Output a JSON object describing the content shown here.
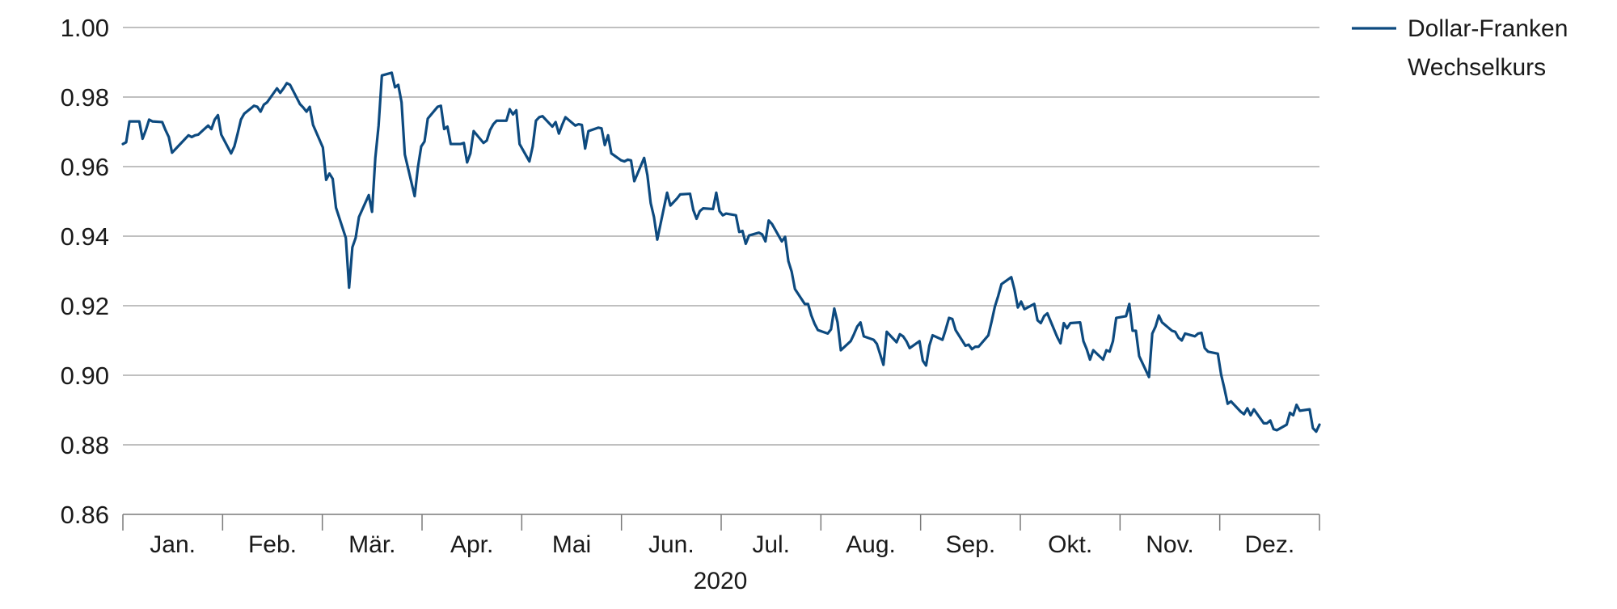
{
  "chart_data": {
    "type": "line",
    "title": "",
    "xlabel": "2020",
    "ylabel": "",
    "ylim": [
      0.86,
      1.0
    ],
    "yticks": [
      "1.00",
      "0.98",
      "0.96",
      "0.94",
      "0.92",
      "0.90",
      "0.88",
      "0.86"
    ],
    "months": [
      "Jan.",
      "Feb.",
      "Mär.",
      "Apr.",
      "Mai",
      "Jun.",
      "Jul.",
      "Aug.",
      "Sep.",
      "Okt.",
      "Nov.",
      "Dez."
    ],
    "grid": true,
    "legend_position": "top-right",
    "line_color": "#0d4a7f",
    "series": [
      {
        "name": "Dollar-Franken Wechselkurs",
        "points": [
          [
            "2020-01-01",
            0.9665
          ],
          [
            "2020-01-02",
            0.967
          ],
          [
            "2020-01-03",
            0.973
          ],
          [
            "2020-01-06",
            0.973
          ],
          [
            "2020-01-07",
            0.968
          ],
          [
            "2020-01-08",
            0.9705
          ],
          [
            "2020-01-09",
            0.9735
          ],
          [
            "2020-01-10",
            0.973
          ],
          [
            "2020-01-13",
            0.9728
          ],
          [
            "2020-01-14",
            0.9705
          ],
          [
            "2020-01-15",
            0.9685
          ],
          [
            "2020-01-16",
            0.964
          ],
          [
            "2020-01-17",
            0.965
          ],
          [
            "2020-01-20",
            0.968
          ],
          [
            "2020-01-21",
            0.969
          ],
          [
            "2020-01-22",
            0.9685
          ],
          [
            "2020-01-23",
            0.969
          ],
          [
            "2020-01-24",
            0.9692
          ],
          [
            "2020-01-27",
            0.9718
          ],
          [
            "2020-01-28",
            0.9708
          ],
          [
            "2020-01-29",
            0.9735
          ],
          [
            "2020-01-30",
            0.9748
          ],
          [
            "2020-01-31",
            0.9692
          ],
          [
            "2020-02-03",
            0.9638
          ],
          [
            "2020-02-04",
            0.9658
          ],
          [
            "2020-02-05",
            0.9695
          ],
          [
            "2020-02-06",
            0.9735
          ],
          [
            "2020-02-07",
            0.9752
          ],
          [
            "2020-02-10",
            0.9775
          ],
          [
            "2020-02-11",
            0.9772
          ],
          [
            "2020-02-12",
            0.9758
          ],
          [
            "2020-02-13",
            0.9778
          ],
          [
            "2020-02-14",
            0.9785
          ],
          [
            "2020-02-17",
            0.9825
          ],
          [
            "2020-02-18",
            0.9812
          ],
          [
            "2020-02-19",
            0.9825
          ],
          [
            "2020-02-20",
            0.984
          ],
          [
            "2020-02-21",
            0.9835
          ],
          [
            "2020-02-24",
            0.978
          ],
          [
            "2020-02-25",
            0.977
          ],
          [
            "2020-02-26",
            0.9758
          ],
          [
            "2020-02-27",
            0.9772
          ],
          [
            "2020-02-28",
            0.972
          ],
          [
            "2020-03-02",
            0.9655
          ],
          [
            "2020-03-03",
            0.9562
          ],
          [
            "2020-03-04",
            0.958
          ],
          [
            "2020-03-05",
            0.9565
          ],
          [
            "2020-03-06",
            0.9482
          ],
          [
            "2020-03-09",
            0.9395
          ],
          [
            "2020-03-10",
            0.9252
          ],
          [
            "2020-03-11",
            0.9368
          ],
          [
            "2020-03-12",
            0.9395
          ],
          [
            "2020-03-13",
            0.9455
          ],
          [
            "2020-03-16",
            0.9518
          ],
          [
            "2020-03-17",
            0.947
          ],
          [
            "2020-03-18",
            0.9625
          ],
          [
            "2020-03-19",
            0.9718
          ],
          [
            "2020-03-20",
            0.9862
          ],
          [
            "2020-03-23",
            0.987
          ],
          [
            "2020-03-24",
            0.9828
          ],
          [
            "2020-03-25",
            0.9835
          ],
          [
            "2020-03-26",
            0.9785
          ],
          [
            "2020-03-27",
            0.9635
          ],
          [
            "2020-03-30",
            0.9515
          ],
          [
            "2020-03-31",
            0.9598
          ],
          [
            "2020-04-01",
            0.9658
          ],
          [
            "2020-04-02",
            0.9672
          ],
          [
            "2020-04-03",
            0.9738
          ],
          [
            "2020-04-06",
            0.9772
          ],
          [
            "2020-04-07",
            0.9775
          ],
          [
            "2020-04-08",
            0.9708
          ],
          [
            "2020-04-09",
            0.9715
          ],
          [
            "2020-04-10",
            0.9665
          ],
          [
            "2020-04-13",
            0.9665
          ],
          [
            "2020-04-14",
            0.9668
          ],
          [
            "2020-04-15",
            0.9612
          ],
          [
            "2020-04-16",
            0.9638
          ],
          [
            "2020-04-17",
            0.9702
          ],
          [
            "2020-04-20",
            0.9668
          ],
          [
            "2020-04-21",
            0.9675
          ],
          [
            "2020-04-22",
            0.9705
          ],
          [
            "2020-04-23",
            0.9722
          ],
          [
            "2020-04-24",
            0.9732
          ],
          [
            "2020-04-27",
            0.9732
          ],
          [
            "2020-04-28",
            0.9765
          ],
          [
            "2020-04-29",
            0.975
          ],
          [
            "2020-04-30",
            0.9762
          ],
          [
            "2020-05-01",
            0.9665
          ],
          [
            "2020-05-04",
            0.9615
          ],
          [
            "2020-05-05",
            0.9658
          ],
          [
            "2020-05-06",
            0.9732
          ],
          [
            "2020-05-07",
            0.9742
          ],
          [
            "2020-05-08",
            0.9745
          ],
          [
            "2020-05-11",
            0.9715
          ],
          [
            "2020-05-12",
            0.9728
          ],
          [
            "2020-05-13",
            0.9695
          ],
          [
            "2020-05-14",
            0.972
          ],
          [
            "2020-05-15",
            0.9742
          ],
          [
            "2020-05-18",
            0.9718
          ],
          [
            "2020-05-19",
            0.9722
          ],
          [
            "2020-05-20",
            0.972
          ],
          [
            "2020-05-21",
            0.9652
          ],
          [
            "2020-05-22",
            0.9702
          ],
          [
            "2020-05-25",
            0.9712
          ],
          [
            "2020-05-26",
            0.971
          ],
          [
            "2020-05-27",
            0.9662
          ],
          [
            "2020-05-28",
            0.969
          ],
          [
            "2020-05-29",
            0.9638
          ],
          [
            "2020-06-01",
            0.9618
          ],
          [
            "2020-06-02",
            0.9615
          ],
          [
            "2020-06-03",
            0.962
          ],
          [
            "2020-06-04",
            0.9618
          ],
          [
            "2020-06-05",
            0.9558
          ],
          [
            "2020-06-08",
            0.9625
          ],
          [
            "2020-06-09",
            0.9575
          ],
          [
            "2020-06-10",
            0.9495
          ],
          [
            "2020-06-11",
            0.9455
          ],
          [
            "2020-06-12",
            0.939
          ],
          [
            "2020-06-15",
            0.9525
          ],
          [
            "2020-06-16",
            0.9488
          ],
          [
            "2020-06-17",
            0.9498
          ],
          [
            "2020-06-18",
            0.9508
          ],
          [
            "2020-06-19",
            0.952
          ],
          [
            "2020-06-22",
            0.9522
          ],
          [
            "2020-06-23",
            0.9475
          ],
          [
            "2020-06-24",
            0.945
          ],
          [
            "2020-06-25",
            0.9472
          ],
          [
            "2020-06-26",
            0.948
          ],
          [
            "2020-06-29",
            0.9478
          ],
          [
            "2020-06-30",
            0.9525
          ],
          [
            "2020-07-01",
            0.9472
          ],
          [
            "2020-07-02",
            0.946
          ],
          [
            "2020-07-03",
            0.9465
          ],
          [
            "2020-07-06",
            0.946
          ],
          [
            "2020-07-07",
            0.9412
          ],
          [
            "2020-07-08",
            0.9415
          ],
          [
            "2020-07-09",
            0.9378
          ],
          [
            "2020-07-10",
            0.9402
          ],
          [
            "2020-07-13",
            0.941
          ],
          [
            "2020-07-14",
            0.9405
          ],
          [
            "2020-07-15",
            0.9385
          ],
          [
            "2020-07-16",
            0.9445
          ],
          [
            "2020-07-17",
            0.9435
          ],
          [
            "2020-07-20",
            0.9385
          ],
          [
            "2020-07-21",
            0.9398
          ],
          [
            "2020-07-22",
            0.9328
          ],
          [
            "2020-07-23",
            0.9298
          ],
          [
            "2020-07-24",
            0.9248
          ],
          [
            "2020-07-27",
            0.9205
          ],
          [
            "2020-07-28",
            0.9205
          ],
          [
            "2020-07-29",
            0.9172
          ],
          [
            "2020-07-30",
            0.9148
          ],
          [
            "2020-07-31",
            0.913
          ],
          [
            "2020-08-03",
            0.912
          ],
          [
            "2020-08-04",
            0.9132
          ],
          [
            "2020-08-05",
            0.9192
          ],
          [
            "2020-08-06",
            0.9152
          ],
          [
            "2020-08-07",
            0.9072
          ],
          [
            "2020-08-10",
            0.9098
          ],
          [
            "2020-08-11",
            0.9118
          ],
          [
            "2020-08-12",
            0.914
          ],
          [
            "2020-08-13",
            0.9152
          ],
          [
            "2020-08-14",
            0.9112
          ],
          [
            "2020-08-17",
            0.9102
          ],
          [
            "2020-08-18",
            0.909
          ],
          [
            "2020-08-19",
            0.906
          ],
          [
            "2020-08-20",
            0.903
          ],
          [
            "2020-08-21",
            0.9125
          ],
          [
            "2020-08-24",
            0.9095
          ],
          [
            "2020-08-25",
            0.9118
          ],
          [
            "2020-08-26",
            0.9112
          ],
          [
            "2020-08-27",
            0.9098
          ],
          [
            "2020-08-28",
            0.9078
          ],
          [
            "2020-08-31",
            0.9098
          ],
          [
            "2020-09-01",
            0.9042
          ],
          [
            "2020-09-02",
            0.9028
          ],
          [
            "2020-09-03",
            0.9085
          ],
          [
            "2020-09-04",
            0.9115
          ],
          [
            "2020-09-07",
            0.9102
          ],
          [
            "2020-09-08",
            0.9132
          ],
          [
            "2020-09-09",
            0.9165
          ],
          [
            "2020-09-10",
            0.9162
          ],
          [
            "2020-09-11",
            0.913
          ],
          [
            "2020-09-14",
            0.9085
          ],
          [
            "2020-09-15",
            0.9088
          ],
          [
            "2020-09-16",
            0.9075
          ],
          [
            "2020-09-17",
            0.9082
          ],
          [
            "2020-09-18",
            0.9082
          ],
          [
            "2020-09-21",
            0.9115
          ],
          [
            "2020-09-22",
            0.9155
          ],
          [
            "2020-09-23",
            0.9198
          ],
          [
            "2020-09-24",
            0.9228
          ],
          [
            "2020-09-25",
            0.9262
          ],
          [
            "2020-09-28",
            0.9282
          ],
          [
            "2020-09-29",
            0.9245
          ],
          [
            "2020-09-30",
            0.9195
          ],
          [
            "2020-10-01",
            0.9212
          ],
          [
            "2020-10-02",
            0.919
          ],
          [
            "2020-10-05",
            0.9205
          ],
          [
            "2020-10-06",
            0.9158
          ],
          [
            "2020-10-07",
            0.915
          ],
          [
            "2020-10-08",
            0.917
          ],
          [
            "2020-10-09",
            0.9178
          ],
          [
            "2020-10-12",
            0.911
          ],
          [
            "2020-10-13",
            0.9092
          ],
          [
            "2020-10-14",
            0.915
          ],
          [
            "2020-10-15",
            0.9135
          ],
          [
            "2020-10-16",
            0.915
          ],
          [
            "2020-10-19",
            0.9152
          ],
          [
            "2020-10-20",
            0.9098
          ],
          [
            "2020-10-21",
            0.9075
          ],
          [
            "2020-10-22",
            0.9045
          ],
          [
            "2020-10-23",
            0.9072
          ],
          [
            "2020-10-26",
            0.9045
          ],
          [
            "2020-10-27",
            0.9072
          ],
          [
            "2020-10-28",
            0.9068
          ],
          [
            "2020-10-29",
            0.9098
          ],
          [
            "2020-10-30",
            0.9165
          ],
          [
            "2020-11-02",
            0.917
          ],
          [
            "2020-11-03",
            0.9205
          ],
          [
            "2020-11-04",
            0.9128
          ],
          [
            "2020-11-05",
            0.9128
          ],
          [
            "2020-11-06",
            0.9055
          ],
          [
            "2020-11-09",
            0.8995
          ],
          [
            "2020-11-10",
            0.912
          ],
          [
            "2020-11-11",
            0.914
          ],
          [
            "2020-11-12",
            0.9172
          ],
          [
            "2020-11-13",
            0.9152
          ],
          [
            "2020-11-16",
            0.9128
          ],
          [
            "2020-11-17",
            0.9125
          ],
          [
            "2020-11-18",
            0.9108
          ],
          [
            "2020-11-19",
            0.91
          ],
          [
            "2020-11-20",
            0.912
          ],
          [
            "2020-11-23",
            0.9112
          ],
          [
            "2020-11-24",
            0.912
          ],
          [
            "2020-11-25",
            0.9122
          ],
          [
            "2020-11-26",
            0.9078
          ],
          [
            "2020-11-27",
            0.9068
          ],
          [
            "2020-11-30",
            0.9062
          ],
          [
            "2020-12-01",
            0.9002
          ],
          [
            "2020-12-02",
            0.8962
          ],
          [
            "2020-12-03",
            0.8918
          ],
          [
            "2020-12-04",
            0.8925
          ],
          [
            "2020-12-07",
            0.8895
          ],
          [
            "2020-12-08",
            0.8888
          ],
          [
            "2020-12-09",
            0.8905
          ],
          [
            "2020-12-10",
            0.8885
          ],
          [
            "2020-12-11",
            0.8902
          ],
          [
            "2020-12-14",
            0.8862
          ],
          [
            "2020-12-15",
            0.8862
          ],
          [
            "2020-12-16",
            0.887
          ],
          [
            "2020-12-17",
            0.8845
          ],
          [
            "2020-12-18",
            0.8842
          ],
          [
            "2020-12-21",
            0.8858
          ],
          [
            "2020-12-22",
            0.8892
          ],
          [
            "2020-12-23",
            0.8885
          ],
          [
            "2020-12-24",
            0.8915
          ],
          [
            "2020-12-25",
            0.8898
          ],
          [
            "2020-12-28",
            0.8902
          ],
          [
            "2020-12-29",
            0.8848
          ],
          [
            "2020-12-30",
            0.8838
          ],
          [
            "2020-12-31",
            0.8858
          ]
        ]
      }
    ]
  }
}
